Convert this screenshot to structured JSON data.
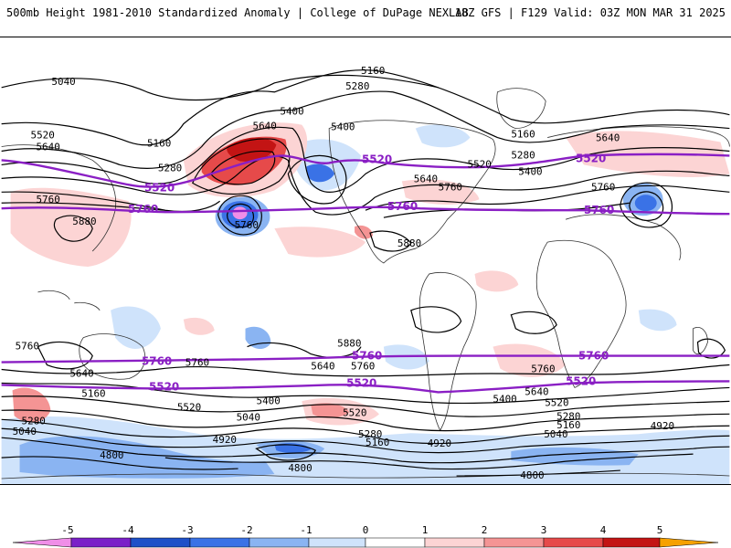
{
  "header": {
    "left": "500mb Height 1981-2010 Standardized Anomaly | College of DuPage NEXLAB",
    "right": "18Z GFS | F129 Valid: 03Z MON MAR 31 2025"
  },
  "colors": {
    "pos1": "#fcd4d4",
    "pos2": "#f49494",
    "pos3": "#e64a4a",
    "pos4": "#c31414",
    "pos5": "#f6a100",
    "neg1": "#cfe3fb",
    "neg2": "#8ab4f2",
    "neg3": "#3a72e6",
    "neg4": "#7a20c8",
    "neg5": "#f08ee8",
    "contour": "#000000",
    "highlight": "#8a1fc4"
  },
  "legend": {
    "ticks": [
      "-5",
      "-4",
      "-3",
      "-2",
      "-1",
      "0",
      "1",
      "2",
      "3",
      "4",
      "5"
    ],
    "colors": [
      "#f08ee8",
      "#7a20c8",
      "#1e50c8",
      "#3a72e6",
      "#8ab4f2",
      "#cfe3fb",
      "#ffffff",
      "#fcd4d4",
      "#f49494",
      "#e64a4a",
      "#c31414",
      "#f6a100"
    ]
  },
  "map": {
    "contour_labels_black": [
      "5040",
      "5160",
      "5280",
      "5400",
      "5520",
      "5640",
      "5760",
      "5880",
      "4920",
      "4800"
    ],
    "contour_labels_purple": [
      "5520",
      "5760"
    ]
  }
}
